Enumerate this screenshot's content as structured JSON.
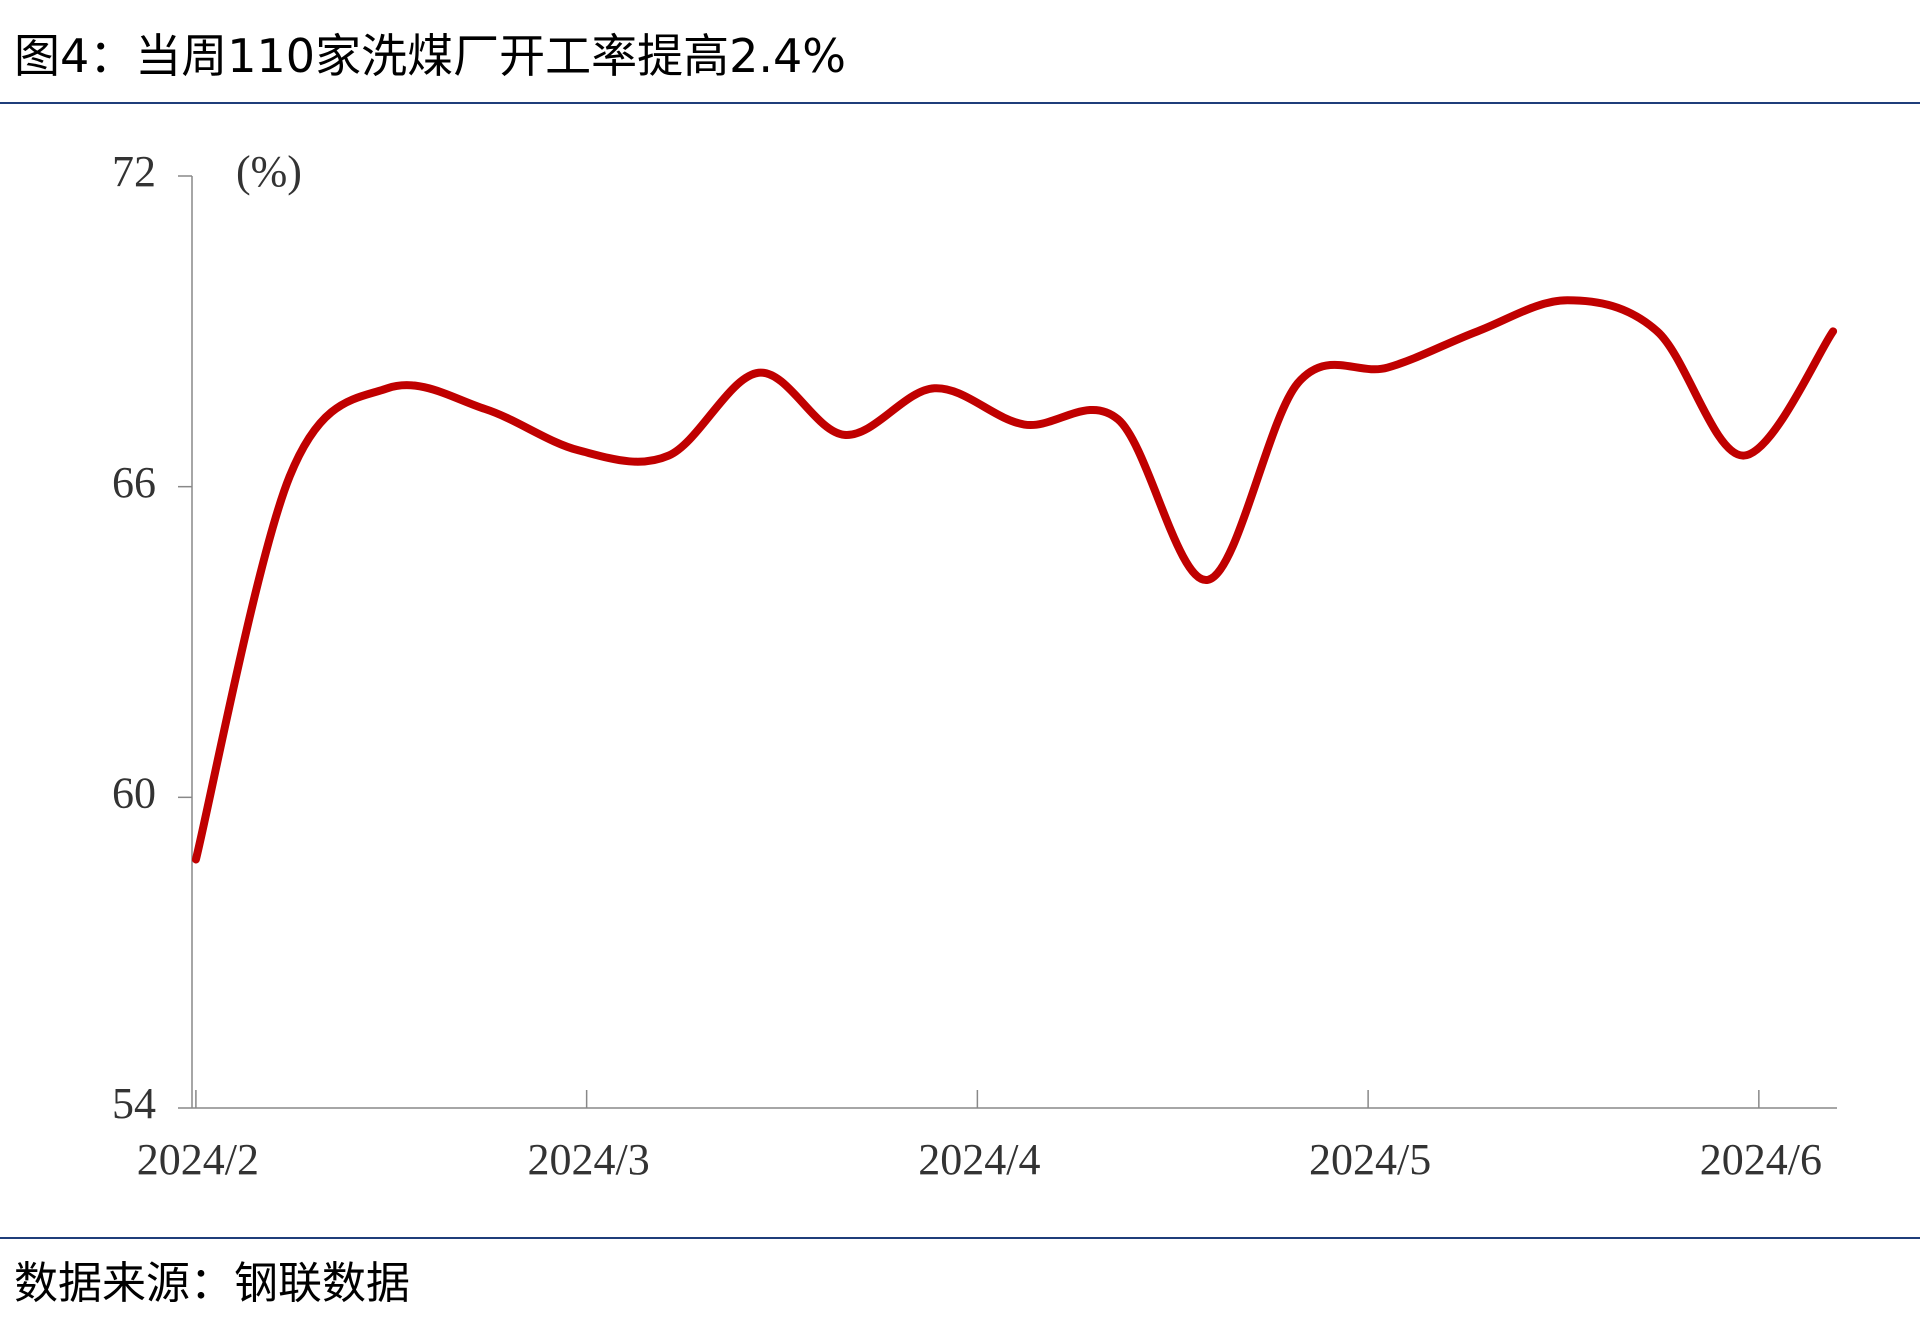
{
  "chart_data": {
    "type": "line",
    "title": "图4：当周110家洗煤厂开工率提高2.4%",
    "y_label": "(%)",
    "source": "数据来源：钢联数据",
    "x": [
      2.0,
      2.24,
      2.49,
      2.74,
      2.98,
      3.21,
      3.44,
      3.66,
      3.89,
      4.12,
      4.36,
      4.59,
      4.82,
      5.05,
      5.28,
      5.51,
      5.74,
      5.96,
      6.19
    ],
    "series": [
      {
        "name": "开工率",
        "color": "#c00000",
        "values": [
          58.8,
          66.2,
          67.9,
          67.5,
          66.7,
          66.6,
          68.2,
          67.0,
          67.9,
          67.2,
          67.3,
          64.2,
          68.0,
          68.3,
          69.0,
          69.6,
          69.0,
          66.6,
          69.0
        ]
      }
    ],
    "xlim": [
      1.99,
      6.2
    ],
    "xticks": [
      {
        "value": 2,
        "label": "2024/2"
      },
      {
        "value": 3,
        "label": "2024/3"
      },
      {
        "value": 4,
        "label": "2024/4"
      },
      {
        "value": 5,
        "label": "2024/5"
      },
      {
        "value": 6,
        "label": "2024/6"
      }
    ],
    "ylim": [
      54,
      72
    ],
    "yticks": [
      54,
      60,
      66,
      72
    ]
  }
}
